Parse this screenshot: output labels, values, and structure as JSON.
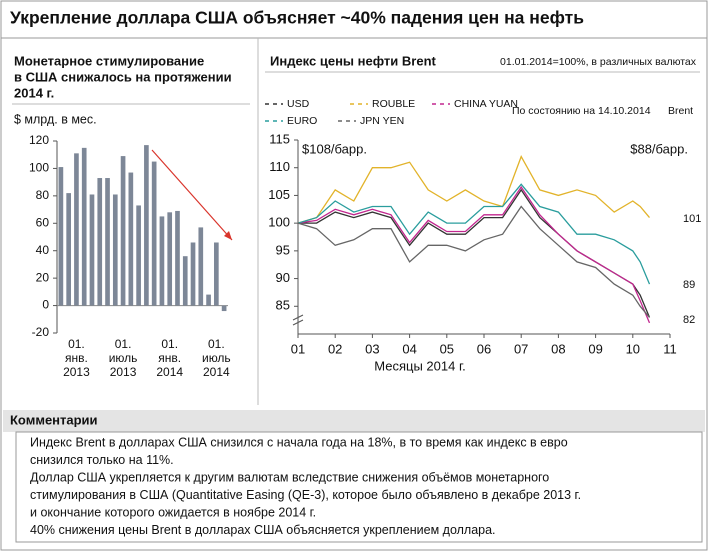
{
  "title": "Укрепление доллара США объясняет ~40% падения цен на нефть",
  "chart_data": [
    {
      "type": "bar",
      "title": [
        "Монетарное стимулирование",
        "в США снижалось на протяжении",
        "2014 г."
      ],
      "ylabel": "$ млрд. в мес.",
      "categories": [
        null,
        null,
        [
          "01.",
          "янв.",
          "2013"
        ],
        null,
        null,
        null,
        null,
        null,
        [
          "01.",
          "июль",
          "2013"
        ],
        null,
        null,
        null,
        null,
        null,
        [
          "01.",
          "янв.",
          "2014"
        ],
        null,
        null,
        null,
        null,
        null,
        [
          "01.",
          "июль",
          "2014"
        ],
        null
      ],
      "values": [
        101,
        82,
        111,
        115,
        81,
        93,
        93,
        81,
        109,
        97,
        73,
        117,
        105,
        65,
        68,
        69,
        36,
        46,
        57,
        8,
        46,
        -4
      ],
      "color": "#7d8797",
      "ylim": [
        -20,
        120
      ],
      "yticks": [
        -20,
        0,
        20,
        40,
        60,
        80,
        100,
        120
      ],
      "trend_color": "#d9342b"
    },
    {
      "type": "line",
      "title": "Индекс цены нефти Brent",
      "subtitle": "01.01.2014=100%, в различных валютах",
      "note": "По состоянию на 14.10.2014",
      "source": "Brent",
      "xlabel": "Месяцы 2014 г.",
      "annotations": [
        "$108/барр.",
        "$88/барр.",
        "101",
        "89",
        "82"
      ],
      "x": [
        1,
        1.5,
        2,
        2.5,
        3,
        3.5,
        4,
        4.5,
        5,
        5.5,
        6,
        6.5,
        7,
        7.5,
        8,
        8.5,
        9,
        9.5,
        10,
        10.2,
        10.45
      ],
      "series": [
        {
          "name": "USD",
          "color": "#333333",
          "values": [
            100,
            100,
            102,
            101,
            102,
            101,
            96,
            100,
            98,
            98,
            101,
            101,
            106,
            101,
            98,
            95,
            93,
            91,
            89,
            87,
            83
          ]
        },
        {
          "name": "ROUBLE",
          "color": "#e2b32a",
          "values": [
            100,
            101,
            106,
            104,
            110,
            110,
            111,
            106,
            104,
            106,
            104,
            103,
            112,
            106,
            105,
            106,
            105,
            102,
            104,
            103,
            101
          ]
        },
        {
          "name": "CHINA YUAN",
          "color": "#c2268f",
          "values": [
            100,
            100.5,
            102.5,
            101.5,
            102.5,
            101.5,
            96.5,
            100.5,
            98.5,
            98.5,
            101.5,
            101.5,
            106.5,
            101.5,
            98,
            95,
            93,
            91,
            89,
            86,
            82
          ]
        },
        {
          "name": "EURO",
          "color": "#2a9d9d",
          "values": [
            100,
            101,
            104,
            102,
            103,
            103,
            98,
            102,
            100,
            100,
            103,
            103,
            107,
            103,
            102,
            98,
            98,
            97,
            95,
            93,
            89
          ]
        },
        {
          "name": "JPN YEN",
          "color": "#666666",
          "values": [
            100,
            99,
            96,
            97,
            99,
            99,
            93,
            96,
            96,
            95,
            97,
            98,
            103,
            99,
            96,
            93,
            92,
            89,
            87,
            85,
            83
          ]
        }
      ],
      "xlim": [
        1,
        11
      ],
      "xticks": [
        {
          "value": 1,
          "label": "01"
        },
        {
          "value": 2,
          "label": "02"
        },
        {
          "value": 3,
          "label": "03"
        },
        {
          "value": 4,
          "label": "04"
        },
        {
          "value": 5,
          "label": "05"
        },
        {
          "value": 6,
          "label": "06"
        },
        {
          "value": 7,
          "label": "07"
        },
        {
          "value": 8,
          "label": "08"
        },
        {
          "value": 9,
          "label": "09"
        },
        {
          "value": 10,
          "label": "10"
        },
        {
          "value": 11,
          "label": "11"
        }
      ],
      "ylim": [
        80,
        115
      ],
      "yticks": [
        85,
        90,
        95,
        100,
        105,
        110,
        115
      ]
    }
  ],
  "comments": {
    "title": "Комментарии",
    "lines": [
      "Индекс Brent в долларах США снизился с начала года на 18%, в то время как индекс в евро",
      "снизился только на 11%.",
      "Доллар США укрепляется к другим валютам вследствие снижения объёмов монетарного",
      "стимулирования в США (Quantitative Easing (QE-3), которое было объявлено в декабре 2013 г.",
      "и окончание которого ожидается в ноябре 2014 г.",
      "40% снижения цены Brent в долларах США объясняется укреплением доллара."
    ]
  }
}
